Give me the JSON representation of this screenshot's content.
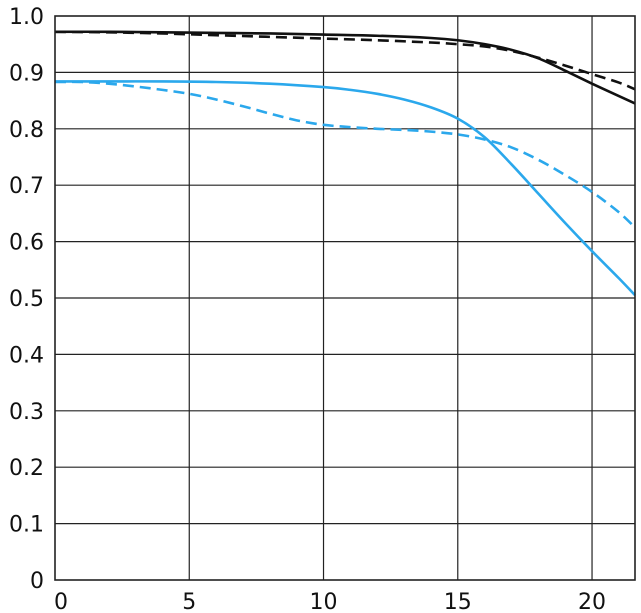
{
  "chart_data": {
    "type": "line",
    "title": "",
    "xlabel": "",
    "ylabel": "",
    "xlim": [
      0,
      21.6
    ],
    "ylim": [
      0,
      1.0
    ],
    "grid": true,
    "legend": "none",
    "x_ticks": [
      0,
      5,
      10,
      15,
      20
    ],
    "x_tick_labels": [
      "0",
      "5",
      "10",
      "15",
      "20"
    ],
    "y_ticks": [
      0,
      0.1,
      0.2,
      0.3,
      0.4,
      0.5,
      0.6,
      0.7,
      0.8,
      0.9,
      1.0
    ],
    "y_tick_labels": [
      "0",
      "0.1",
      "0.2",
      "0.3",
      "0.4",
      "0.5",
      "0.6",
      "0.7",
      "0.8",
      "0.9",
      "1.0"
    ],
    "series": [
      {
        "color": "#111111",
        "line_style": "solid",
        "x": [
          0,
          2,
          4,
          6,
          8,
          10,
          12,
          14,
          15,
          16,
          17,
          18,
          19,
          20,
          21,
          21.6
        ],
        "y": [
          0.972,
          0.972,
          0.971,
          0.97,
          0.969,
          0.967,
          0.965,
          0.961,
          0.957,
          0.95,
          0.94,
          0.925,
          0.903,
          0.88,
          0.858,
          0.845
        ]
      },
      {
        "color": "#111111",
        "line_style": "dashed",
        "x": [
          0,
          2,
          4,
          6,
          8,
          10,
          12,
          14,
          15,
          16,
          17,
          18,
          19,
          20,
          21,
          21.6
        ],
        "y": [
          0.972,
          0.971,
          0.969,
          0.966,
          0.963,
          0.96,
          0.957,
          0.953,
          0.95,
          0.946,
          0.938,
          0.926,
          0.912,
          0.897,
          0.882,
          0.87
        ]
      },
      {
        "color": "#2ba8ec",
        "line_style": "solid",
        "x": [
          0,
          2,
          4,
          6,
          8,
          10,
          11,
          12,
          13,
          14,
          15,
          16,
          17,
          18,
          19,
          20,
          21,
          21.6
        ],
        "y": [
          0.884,
          0.884,
          0.884,
          0.883,
          0.88,
          0.874,
          0.869,
          0.862,
          0.852,
          0.838,
          0.818,
          0.785,
          0.737,
          0.685,
          0.633,
          0.583,
          0.535,
          0.505
        ]
      },
      {
        "color": "#2ba8ec",
        "line_style": "dashed",
        "x": [
          0,
          1,
          2,
          3,
          4,
          5,
          6,
          7,
          8,
          9,
          10,
          11,
          12,
          13,
          14,
          15,
          16,
          17,
          18,
          19,
          20,
          21,
          21.6
        ],
        "y": [
          0.883,
          0.883,
          0.88,
          0.875,
          0.869,
          0.862,
          0.852,
          0.84,
          0.827,
          0.815,
          0.807,
          0.803,
          0.8,
          0.798,
          0.795,
          0.79,
          0.781,
          0.767,
          0.745,
          0.718,
          0.688,
          0.652,
          0.625
        ]
      }
    ]
  }
}
